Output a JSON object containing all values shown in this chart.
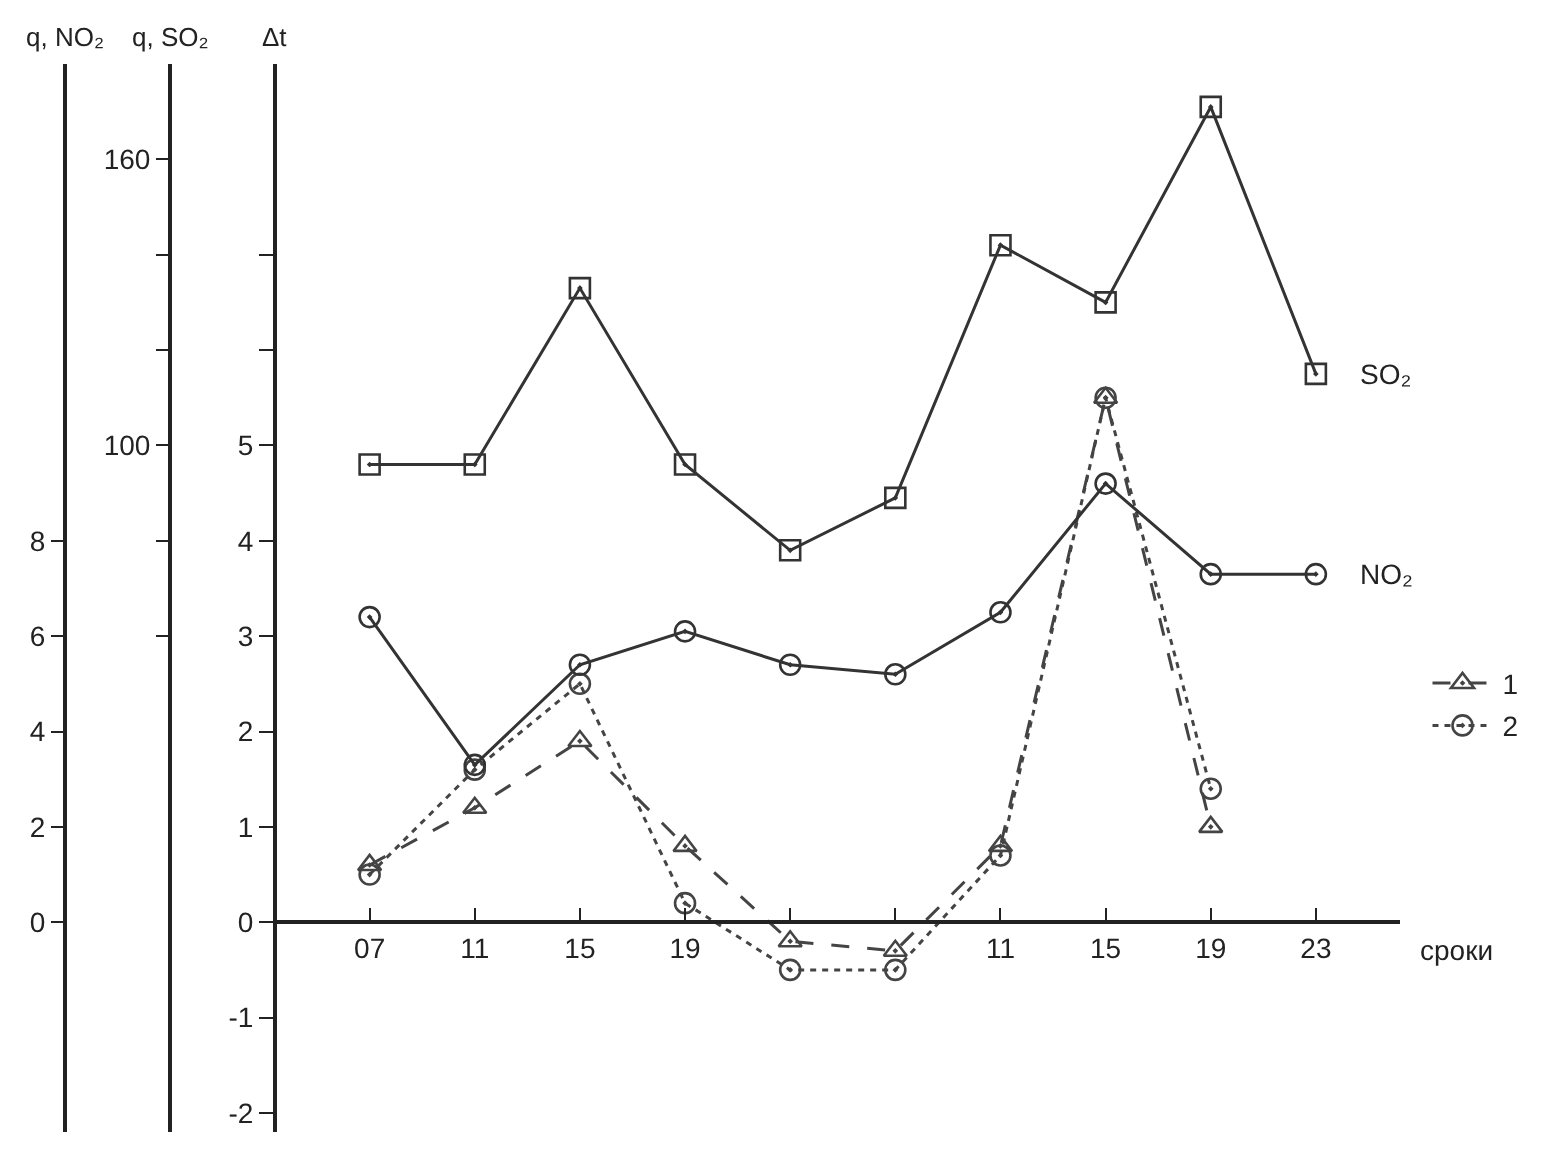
{
  "chart_data": {
    "type": "line",
    "xlabel": "сроки",
    "ylabel": "Δt",
    "y2label": "q, SO₂",
    "y3label": "q, NO₂",
    "categories": [
      "07",
      "11",
      "15",
      "19",
      null,
      null,
      "11",
      "15",
      "19",
      "23"
    ],
    "ylim": [
      -2.2,
      9
    ],
    "yticks": [
      -2,
      -1,
      0,
      1,
      2,
      3,
      4,
      5,
      {
        "value": 6,
        "label": null
      },
      {
        "value": 7,
        "label": null
      }
    ],
    "y2lim": [
      -44,
      180
    ],
    "y2ticks": [
      {
        "value": 60,
        "label": null
      },
      {
        "value": 80,
        "label": null
      },
      100,
      {
        "value": 120,
        "label": null
      },
      {
        "value": 140,
        "label": null
      },
      160
    ],
    "y3lim": [
      -4.4,
      18
    ],
    "y3ticks": [
      0,
      2,
      4,
      6,
      8
    ],
    "legend": "right",
    "series": [
      {
        "name": "SO₂",
        "color": "#333333",
        "axis": "y2",
        "marker": "square",
        "line_style": "solid",
        "values": [
          96,
          96,
          133,
          96,
          78,
          89,
          142,
          130,
          171,
          115
        ]
      },
      {
        "name": "NO₂",
        "color": "#333333",
        "axis": "y3",
        "marker": "circle",
        "line_style": "solid",
        "values": [
          6.4,
          3.3,
          5.4,
          6.1,
          5.4,
          5.2,
          6.5,
          9.2,
          7.3,
          7.3
        ]
      },
      {
        "name": "1",
        "color": "#444444",
        "marker": "triangle",
        "line_style": "dashed",
        "values": [
          0.6,
          1.2,
          1.9,
          0.8,
          -0.2,
          -0.3,
          0.8,
          5.5,
          1.0,
          null
        ]
      },
      {
        "name": "2",
        "color": "#444444",
        "marker": "circle",
        "line_style": "dotted",
        "values": [
          0.5,
          1.6,
          2.5,
          0.2,
          -0.5,
          -0.5,
          0.7,
          5.5,
          1.4,
          null
        ]
      }
    ]
  }
}
